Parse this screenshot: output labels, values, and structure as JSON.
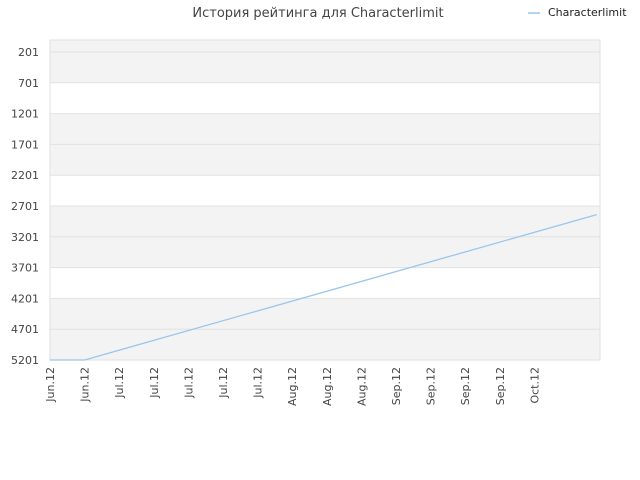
{
  "chart_data": {
    "type": "line",
    "title": "История рейтинга для Characterlimit",
    "legend": {
      "position": "top-right",
      "entries": [
        "Characterlimit"
      ]
    },
    "y_axis": {
      "inverted": true,
      "range": [
        201,
        5201
      ],
      "ticks": [
        201,
        701,
        1201,
        1701,
        2201,
        2701,
        3201,
        3701,
        4201,
        4701,
        5201
      ]
    },
    "x_axis": {
      "ticks": [
        "Jun.12",
        "Jun.12",
        "Jul.12",
        "Jul.12",
        "Jul.12",
        "Jul.12",
        "Jul.12",
        "Aug.12",
        "Aug.12",
        "Aug.12",
        "Sep.12",
        "Sep.12",
        "Sep.12",
        "Sep.12",
        "Oct.12"
      ]
    },
    "grid": {
      "horizontal": true,
      "alternating_bands": true
    },
    "colors": {
      "series": "#99c6ee",
      "band": "#f3f3f3",
      "gridline": "#e2e2e2"
    },
    "series": [
      {
        "name": "Characterlimit",
        "x": [
          0,
          1,
          15.8
        ],
        "values": [
          5201,
          5201,
          2841
        ]
      }
    ]
  }
}
